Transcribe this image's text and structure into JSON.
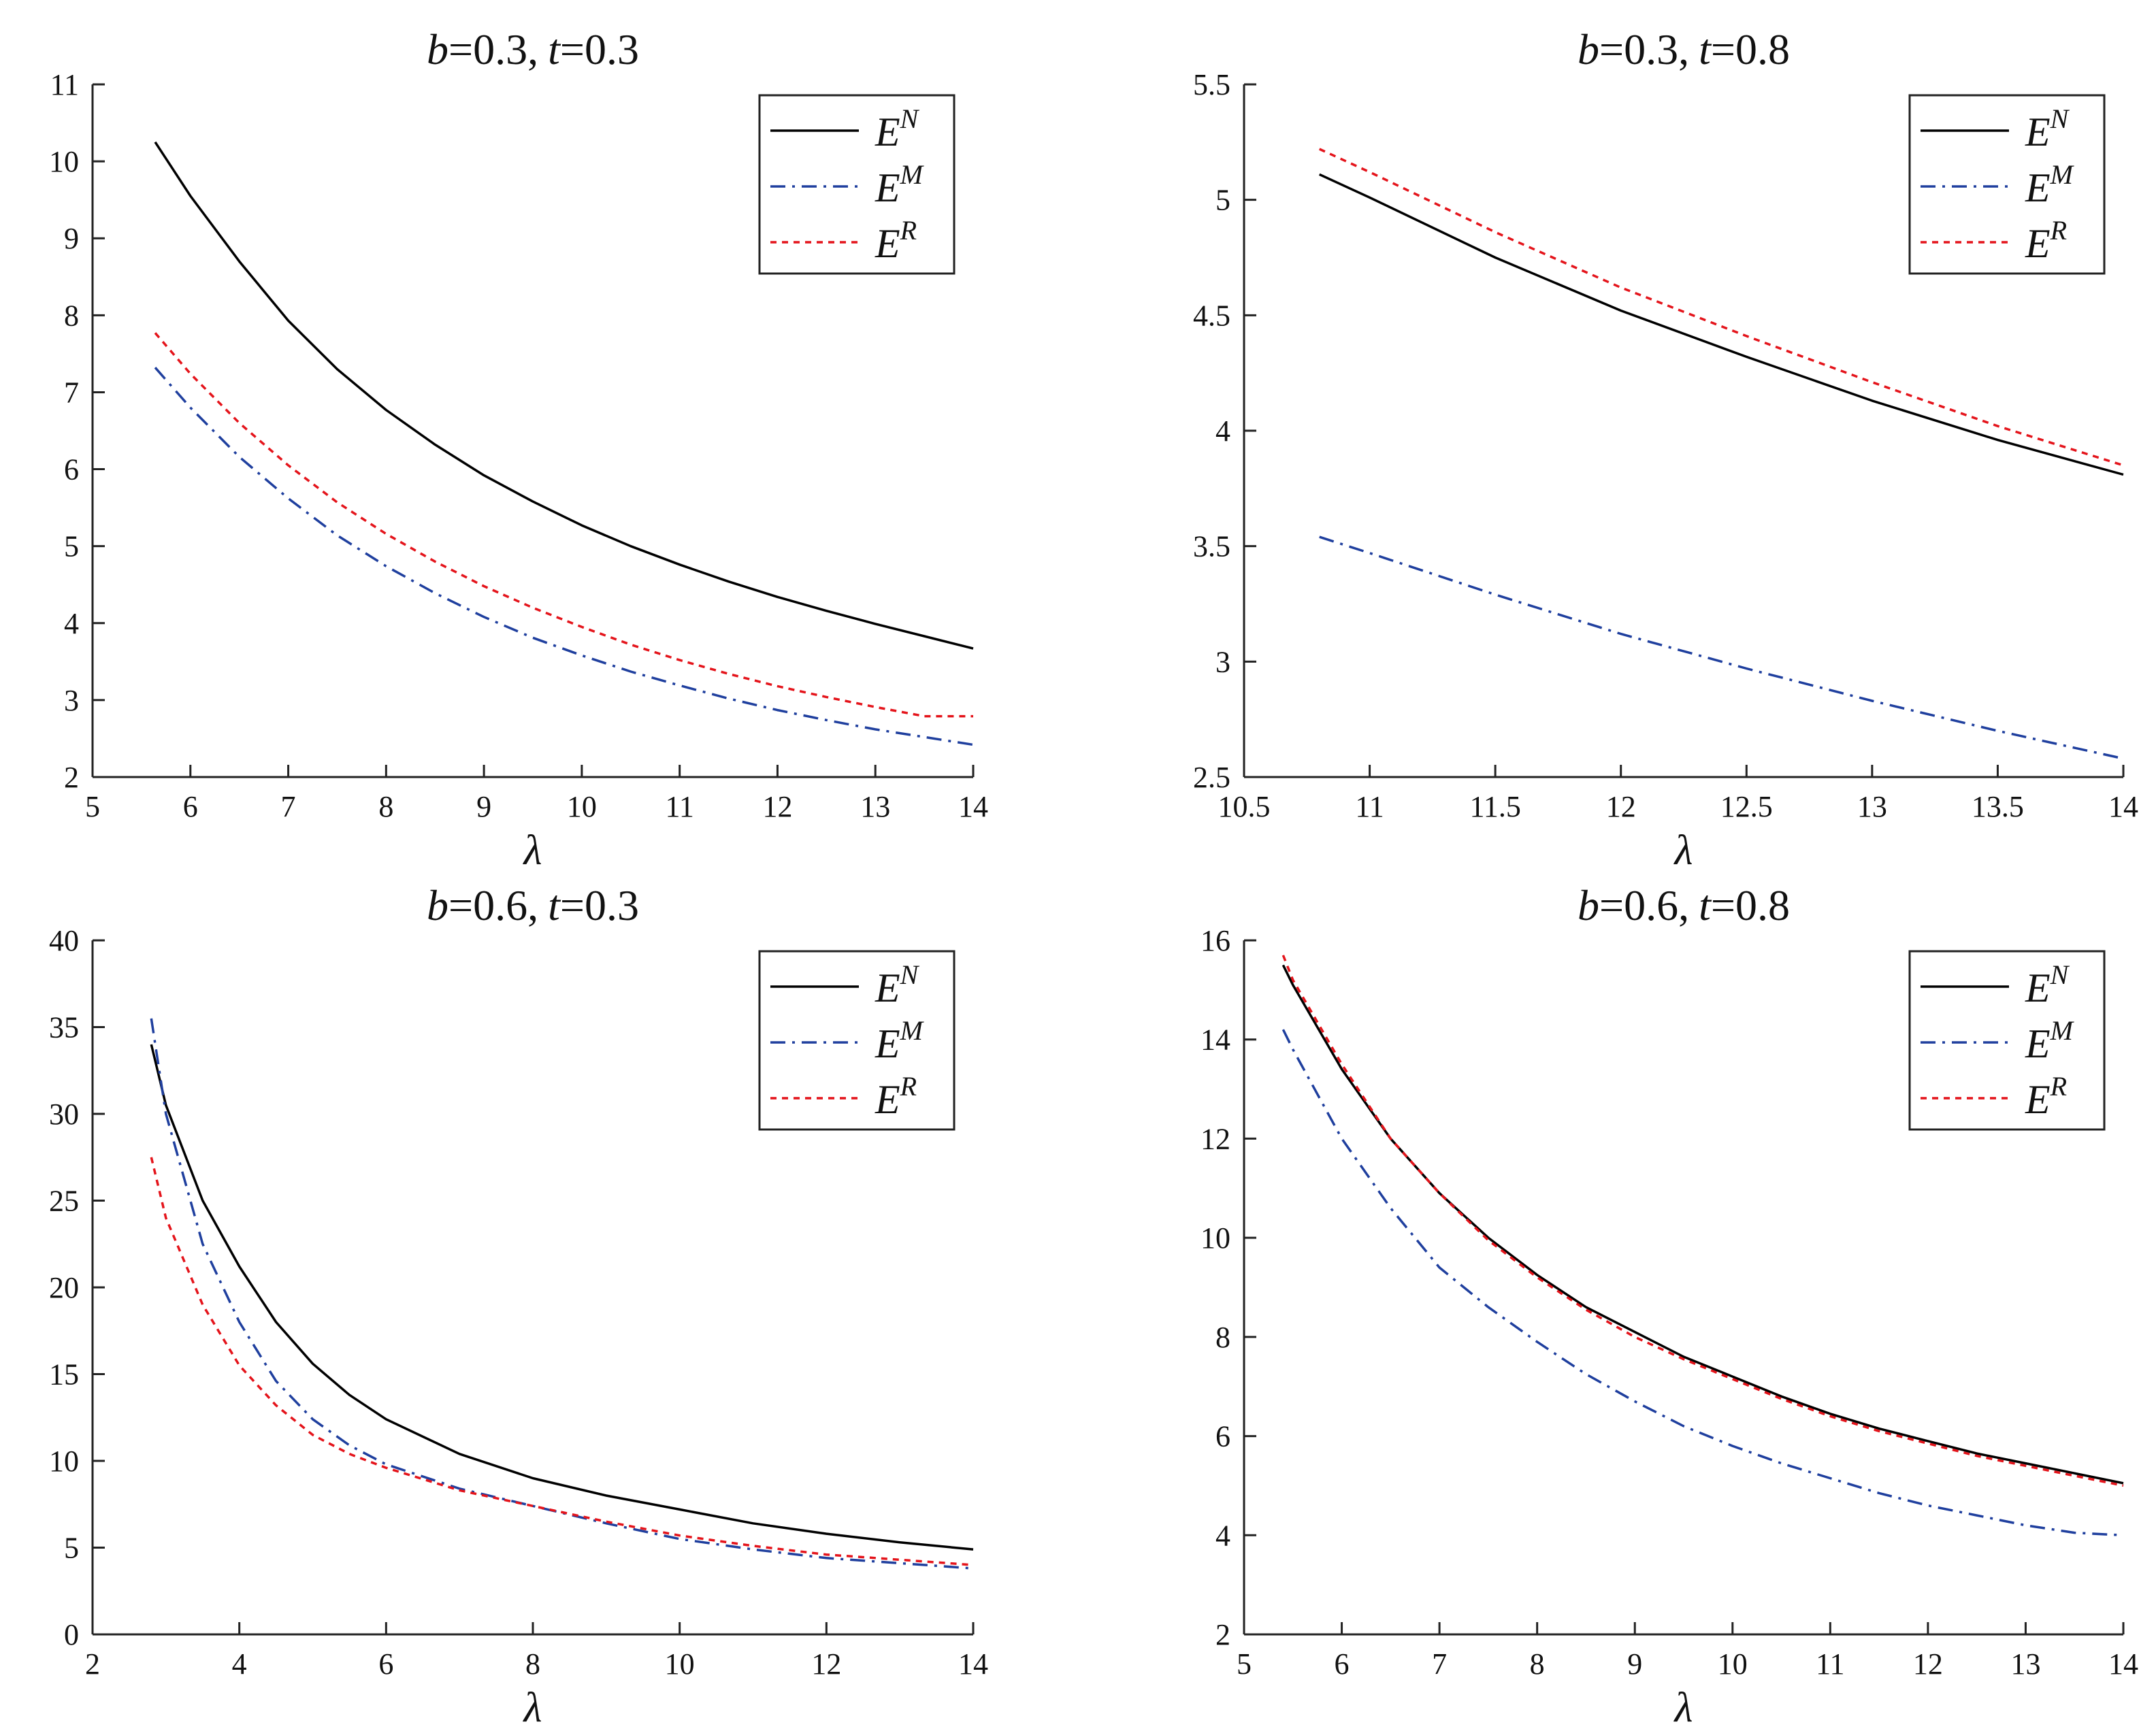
{
  "chart_data": [
    {
      "type": "line",
      "title": {
        "b_symbol": "b",
        "b_value": "=0.3,",
        "t_symbol": "t",
        "t_value": "=0.3"
      },
      "xlabel": "λ",
      "ylabel": "",
      "xlim": [
        5,
        14
      ],
      "ylim": [
        2,
        11
      ],
      "xticks": [
        "5",
        "6",
        "7",
        "8",
        "9",
        "10",
        "11",
        "12",
        "13",
        "14"
      ],
      "yticks": [
        "2",
        "3",
        "4",
        "5",
        "6",
        "7",
        "8",
        "9",
        "10",
        "11"
      ],
      "x": [
        5.64,
        6,
        6.5,
        7,
        7.5,
        8,
        8.5,
        9,
        9.5,
        10,
        10.5,
        11,
        11.5,
        12,
        12.5,
        13,
        13.5,
        14
      ],
      "series": [
        {
          "name": "E^N",
          "base": "E",
          "sup": "N",
          "style": "solid",
          "color": "#000000",
          "values": [
            10.25,
            9.55,
            8.7,
            7.93,
            7.3,
            6.77,
            6.32,
            5.92,
            5.58,
            5.27,
            5.0,
            4.76,
            4.54,
            4.34,
            4.16,
            3.99,
            3.83,
            3.67
          ]
        },
        {
          "name": "E^M",
          "base": "E",
          "sup": "M",
          "style": "dashdot",
          "color": "#1f3f9e",
          "values": [
            7.32,
            6.8,
            6.16,
            5.62,
            5.14,
            4.74,
            4.39,
            4.08,
            3.81,
            3.58,
            3.37,
            3.19,
            3.02,
            2.87,
            2.74,
            2.62,
            2.52,
            2.42
          ]
        },
        {
          "name": "E^R",
          "base": "E",
          "sup": "R",
          "style": "dotted",
          "color": "#e4141b",
          "values": [
            7.77,
            7.24,
            6.6,
            6.05,
            5.57,
            5.16,
            4.8,
            4.48,
            4.2,
            3.95,
            3.72,
            3.52,
            3.34,
            3.18,
            3.04,
            2.91,
            2.79,
            2.79
          ]
        }
      ],
      "legend_position": "top-right"
    },
    {
      "type": "line",
      "title": {
        "b_symbol": "b",
        "b_value": "=0.3,",
        "t_symbol": "t",
        "t_value": "=0.8"
      },
      "xlabel": "λ",
      "ylabel": "",
      "xlim": [
        10.5,
        14
      ],
      "ylim": [
        2.5,
        5.5
      ],
      "xticks": [
        "10.5",
        "11",
        "11.5",
        "12",
        "12.5",
        "13",
        "13.5",
        "14"
      ],
      "yticks": [
        "2.5",
        "3",
        "3.5",
        "4",
        "4.5",
        "5",
        "5.5"
      ],
      "x": [
        10.8,
        11,
        11.5,
        12,
        12.5,
        13,
        13.5,
        14
      ],
      "series": [
        {
          "name": "E^N",
          "base": "E",
          "sup": "N",
          "style": "solid",
          "color": "#000000",
          "values": [
            5.11,
            5.01,
            4.75,
            4.52,
            4.32,
            4.13,
            3.96,
            3.81
          ]
        },
        {
          "name": "E^M",
          "base": "E",
          "sup": "M",
          "style": "dashdot",
          "color": "#1f3f9e",
          "values": [
            3.54,
            3.47,
            3.29,
            3.12,
            2.97,
            2.83,
            2.7,
            2.58
          ]
        },
        {
          "name": "E^R",
          "base": "E",
          "sup": "R",
          "style": "dotted",
          "color": "#e4141b",
          "values": [
            5.22,
            5.12,
            4.86,
            4.62,
            4.41,
            4.21,
            4.02,
            3.85
          ]
        }
      ],
      "legend_position": "top-right"
    },
    {
      "type": "line",
      "title": {
        "b_symbol": "b",
        "b_value": "=0.6,",
        "t_symbol": "t",
        "t_value": "=0.3"
      },
      "xlabel": "λ",
      "ylabel": "",
      "xlim": [
        2,
        14
      ],
      "ylim": [
        0,
        40
      ],
      "xticks": [
        "2",
        "4",
        "6",
        "8",
        "10",
        "12",
        "14"
      ],
      "yticks": [
        "0",
        "5",
        "10",
        "15",
        "20",
        "25",
        "30",
        "35",
        "40"
      ],
      "x": [
        2.8,
        3,
        3.5,
        4,
        4.5,
        5,
        5.5,
        6,
        7,
        8,
        9,
        10,
        11,
        12,
        13,
        14
      ],
      "series": [
        {
          "name": "E^N",
          "base": "E",
          "sup": "N",
          "style": "solid",
          "color": "#000000",
          "values": [
            34.0,
            30.5,
            25.0,
            21.2,
            18.0,
            15.6,
            13.8,
            12.4,
            10.4,
            9.0,
            8.0,
            7.2,
            6.4,
            5.8,
            5.3,
            4.9
          ]
        },
        {
          "name": "E^M",
          "base": "E",
          "sup": "M",
          "style": "dashdot",
          "color": "#1f3f9e",
          "values": [
            35.5,
            30.0,
            22.5,
            18.0,
            14.6,
            12.4,
            10.9,
            9.8,
            8.4,
            7.4,
            6.4,
            5.5,
            4.9,
            4.4,
            4.1,
            3.8
          ]
        },
        {
          "name": "E^R",
          "base": "E",
          "sup": "R",
          "style": "dotted",
          "color": "#e4141b",
          "values": [
            27.5,
            24.0,
            19.0,
            15.5,
            13.2,
            11.5,
            10.4,
            9.6,
            8.3,
            7.4,
            6.5,
            5.7,
            5.1,
            4.6,
            4.3,
            4.0
          ]
        }
      ],
      "legend_position": "top-right"
    },
    {
      "type": "line",
      "title": {
        "b_symbol": "b",
        "b_value": "=0.6,",
        "t_symbol": "t",
        "t_value": "=0.8"
      },
      "xlabel": "λ",
      "ylabel": "",
      "xlim": [
        5,
        14
      ],
      "ylim": [
        2,
        16
      ],
      "xticks": [
        "5",
        "6",
        "7",
        "8",
        "9",
        "10",
        "11",
        "12",
        "13",
        "14"
      ],
      "yticks": [
        "2",
        "4",
        "6",
        "8",
        "10",
        "12",
        "14",
        "16"
      ],
      "x": [
        5.4,
        5.5,
        6,
        6.5,
        7,
        7.5,
        8,
        8.5,
        9,
        9.5,
        10,
        10.5,
        11,
        11.5,
        12,
        12.5,
        13,
        13.5,
        14
      ],
      "series": [
        {
          "name": "E^N",
          "base": "E",
          "sup": "N",
          "style": "solid",
          "color": "#000000",
          "values": [
            15.5,
            15.1,
            13.4,
            12.0,
            10.9,
            10.0,
            9.25,
            8.6,
            8.1,
            7.6,
            7.2,
            6.8,
            6.45,
            6.15,
            5.9,
            5.65,
            5.45,
            5.25,
            5.05
          ]
        },
        {
          "name": "E^M",
          "base": "E",
          "sup": "M",
          "style": "dashdot",
          "color": "#1f3f9e",
          "values": [
            14.2,
            13.8,
            12.0,
            10.6,
            9.4,
            8.6,
            7.9,
            7.25,
            6.7,
            6.2,
            5.8,
            5.45,
            5.15,
            4.85,
            4.6,
            4.4,
            4.2,
            4.05,
            4.0
          ]
        },
        {
          "name": "E^R",
          "base": "E",
          "sup": "R",
          "style": "dotted",
          "color": "#e4141b",
          "values": [
            15.7,
            15.2,
            13.5,
            12.0,
            10.9,
            9.95,
            9.2,
            8.55,
            8.0,
            7.55,
            7.15,
            6.75,
            6.4,
            6.1,
            5.85,
            5.6,
            5.4,
            5.2,
            5.0
          ]
        }
      ],
      "legend_position": "top-right"
    }
  ]
}
